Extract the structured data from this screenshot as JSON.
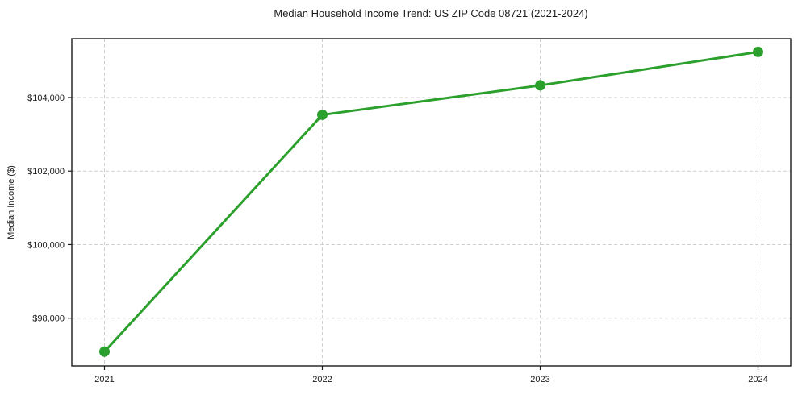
{
  "chart_data": {
    "type": "line",
    "title": "Median Household Income Trend: US ZIP Code 08721 (2021-2024)",
    "xlabel": "",
    "ylabel": "Median Income ($)",
    "x": [
      2021,
      2022,
      2023,
      2024
    ],
    "x_tick_labels": [
      "2021",
      "2022",
      "2023",
      "2024"
    ],
    "series": [
      {
        "name": "Median Household Income",
        "values": [
          97090,
          103530,
          104330,
          105240
        ]
      }
    ],
    "y_ticks": [
      98000,
      100000,
      102000,
      104000
    ],
    "y_tick_labels": [
      "$98,000",
      "$100,000",
      "$102,000",
      "$104,000"
    ],
    "xlim": [
      2020.85,
      2024.15
    ],
    "ylim": [
      96700,
      105600
    ],
    "grid": true,
    "grid_style": "dashed",
    "legend": "none",
    "colors": {
      "line": "#2ca02c",
      "marker": "#2ca02c",
      "grid": "#cfcfcf",
      "spine": "#1a1a1a",
      "text": "#1c1c1c",
      "background": "#ffffff"
    }
  }
}
